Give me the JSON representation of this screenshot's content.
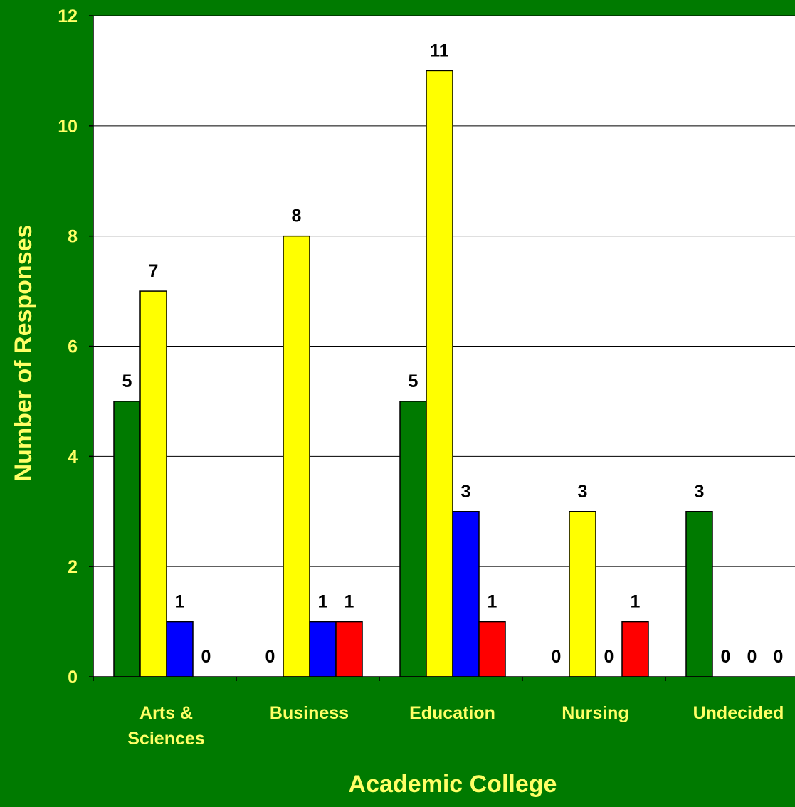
{
  "chart_data": {
    "type": "bar",
    "title": "",
    "xlabel": "Academic College",
    "ylabel": "Number of Responses",
    "ylim": [
      0,
      12
    ],
    "yticks": [
      0,
      2,
      4,
      6,
      8,
      10,
      12
    ],
    "categories": [
      [
        "Arts &",
        "Sciences"
      ],
      [
        "Business"
      ],
      [
        "Education"
      ],
      [
        "Nursing"
      ],
      [
        "Undecided"
      ]
    ],
    "series": [
      {
        "color": "#007A00",
        "values": [
          5,
          0,
          5,
          0,
          3
        ]
      },
      {
        "color": "#FFFF00",
        "values": [
          7,
          8,
          11,
          3,
          0
        ]
      },
      {
        "color": "#0000FF",
        "values": [
          1,
          1,
          3,
          0,
          0
        ]
      },
      {
        "color": "#FF0000",
        "values": [
          0,
          1,
          1,
          1,
          0
        ]
      }
    ],
    "grid": true,
    "legend": "none",
    "colors": {
      "background": "#007A00",
      "plot_area": "#FFFFFF",
      "axis_text": "#FFFF66",
      "data_label": "#000000"
    }
  }
}
